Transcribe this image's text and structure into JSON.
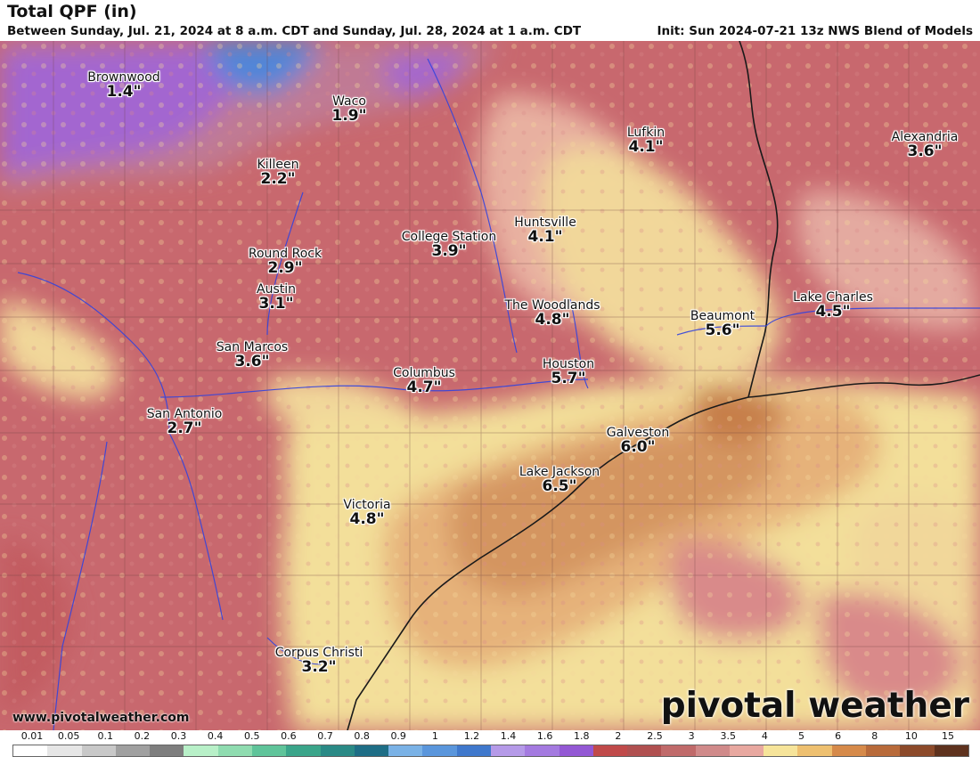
{
  "header": {
    "title": "Total QPF (in)",
    "subtitle": "Between Sunday, Jul. 21, 2024 at 8 a.m. CDT and Sunday, Jul. 28, 2024 at 1 a.m. CDT",
    "init": "Init: Sun 2024-07-21 13z NWS Blend of Models"
  },
  "cities": [
    {
      "name": "Brownwood",
      "value": "1.4\""
    },
    {
      "name": "Waco",
      "value": "1.9\""
    },
    {
      "name": "Killeen",
      "value": "2.2\""
    },
    {
      "name": "Lufkin",
      "value": "4.1\""
    },
    {
      "name": "Alexandria",
      "value": "3.6\""
    },
    {
      "name": "Huntsville",
      "value": "4.1\""
    },
    {
      "name": "College Station",
      "value": "3.9\""
    },
    {
      "name": "Round Rock",
      "value": "2.9\""
    },
    {
      "name": "Austin",
      "value": "3.1\""
    },
    {
      "name": "Lake Charles",
      "value": "4.5\""
    },
    {
      "name": "The Woodlands",
      "value": "4.8\""
    },
    {
      "name": "Beaumont",
      "value": "5.6\""
    },
    {
      "name": "San Marcos",
      "value": "3.6\""
    },
    {
      "name": "Columbus",
      "value": "4.7\""
    },
    {
      "name": "Houston",
      "value": "5.7\""
    },
    {
      "name": "San Antonio",
      "value": "2.7\""
    },
    {
      "name": "Galveston",
      "value": "6.0\""
    },
    {
      "name": "Lake Jackson",
      "value": "6.5\""
    },
    {
      "name": "Victoria",
      "value": "4.8\""
    },
    {
      "name": "Corpus Christi",
      "value": "3.2\""
    }
  ],
  "footer": {
    "url": "www.pivotalweather.com",
    "brand": "pivotal weather"
  },
  "legend": {
    "ticks": [
      "0.01",
      "0.05",
      "0.1",
      "0.2",
      "0.3",
      "0.4",
      "0.5",
      "0.6",
      "0.7",
      "0.8",
      "0.9",
      "1",
      "1.2",
      "1.4",
      "1.6",
      "1.8",
      "2",
      "2.5",
      "3",
      "3.5",
      "4",
      "5",
      "6",
      "8",
      "10",
      "15"
    ],
    "colors": [
      "#ffffff",
      "#e6e6e6",
      "#c8c8c8",
      "#a0a0a0",
      "#7e7e7e",
      "#b8f0c8",
      "#8fdcb0",
      "#5fc49a",
      "#3aa58a",
      "#2a8a86",
      "#1e6e86",
      "#7ab2e6",
      "#5a96dc",
      "#3f78cc",
      "#b59ae8",
      "#a47ae0",
      "#9358d4",
      "#c04a4a",
      "#b05050",
      "#c06a6a",
      "#d08a8a",
      "#e8a8a0",
      "#f6e49a",
      "#eec070",
      "#d68a4a",
      "#b86a3a",
      "#8c4a2a",
      "#5e321e"
    ]
  },
  "colors": {
    "base_rain": "#c8686e",
    "light_purple": "#a366d0",
    "blue": "#4f86d9",
    "pale_yellow": "#f6e49a",
    "tan": "#e6b27a",
    "orange": "#cf8a50"
  }
}
